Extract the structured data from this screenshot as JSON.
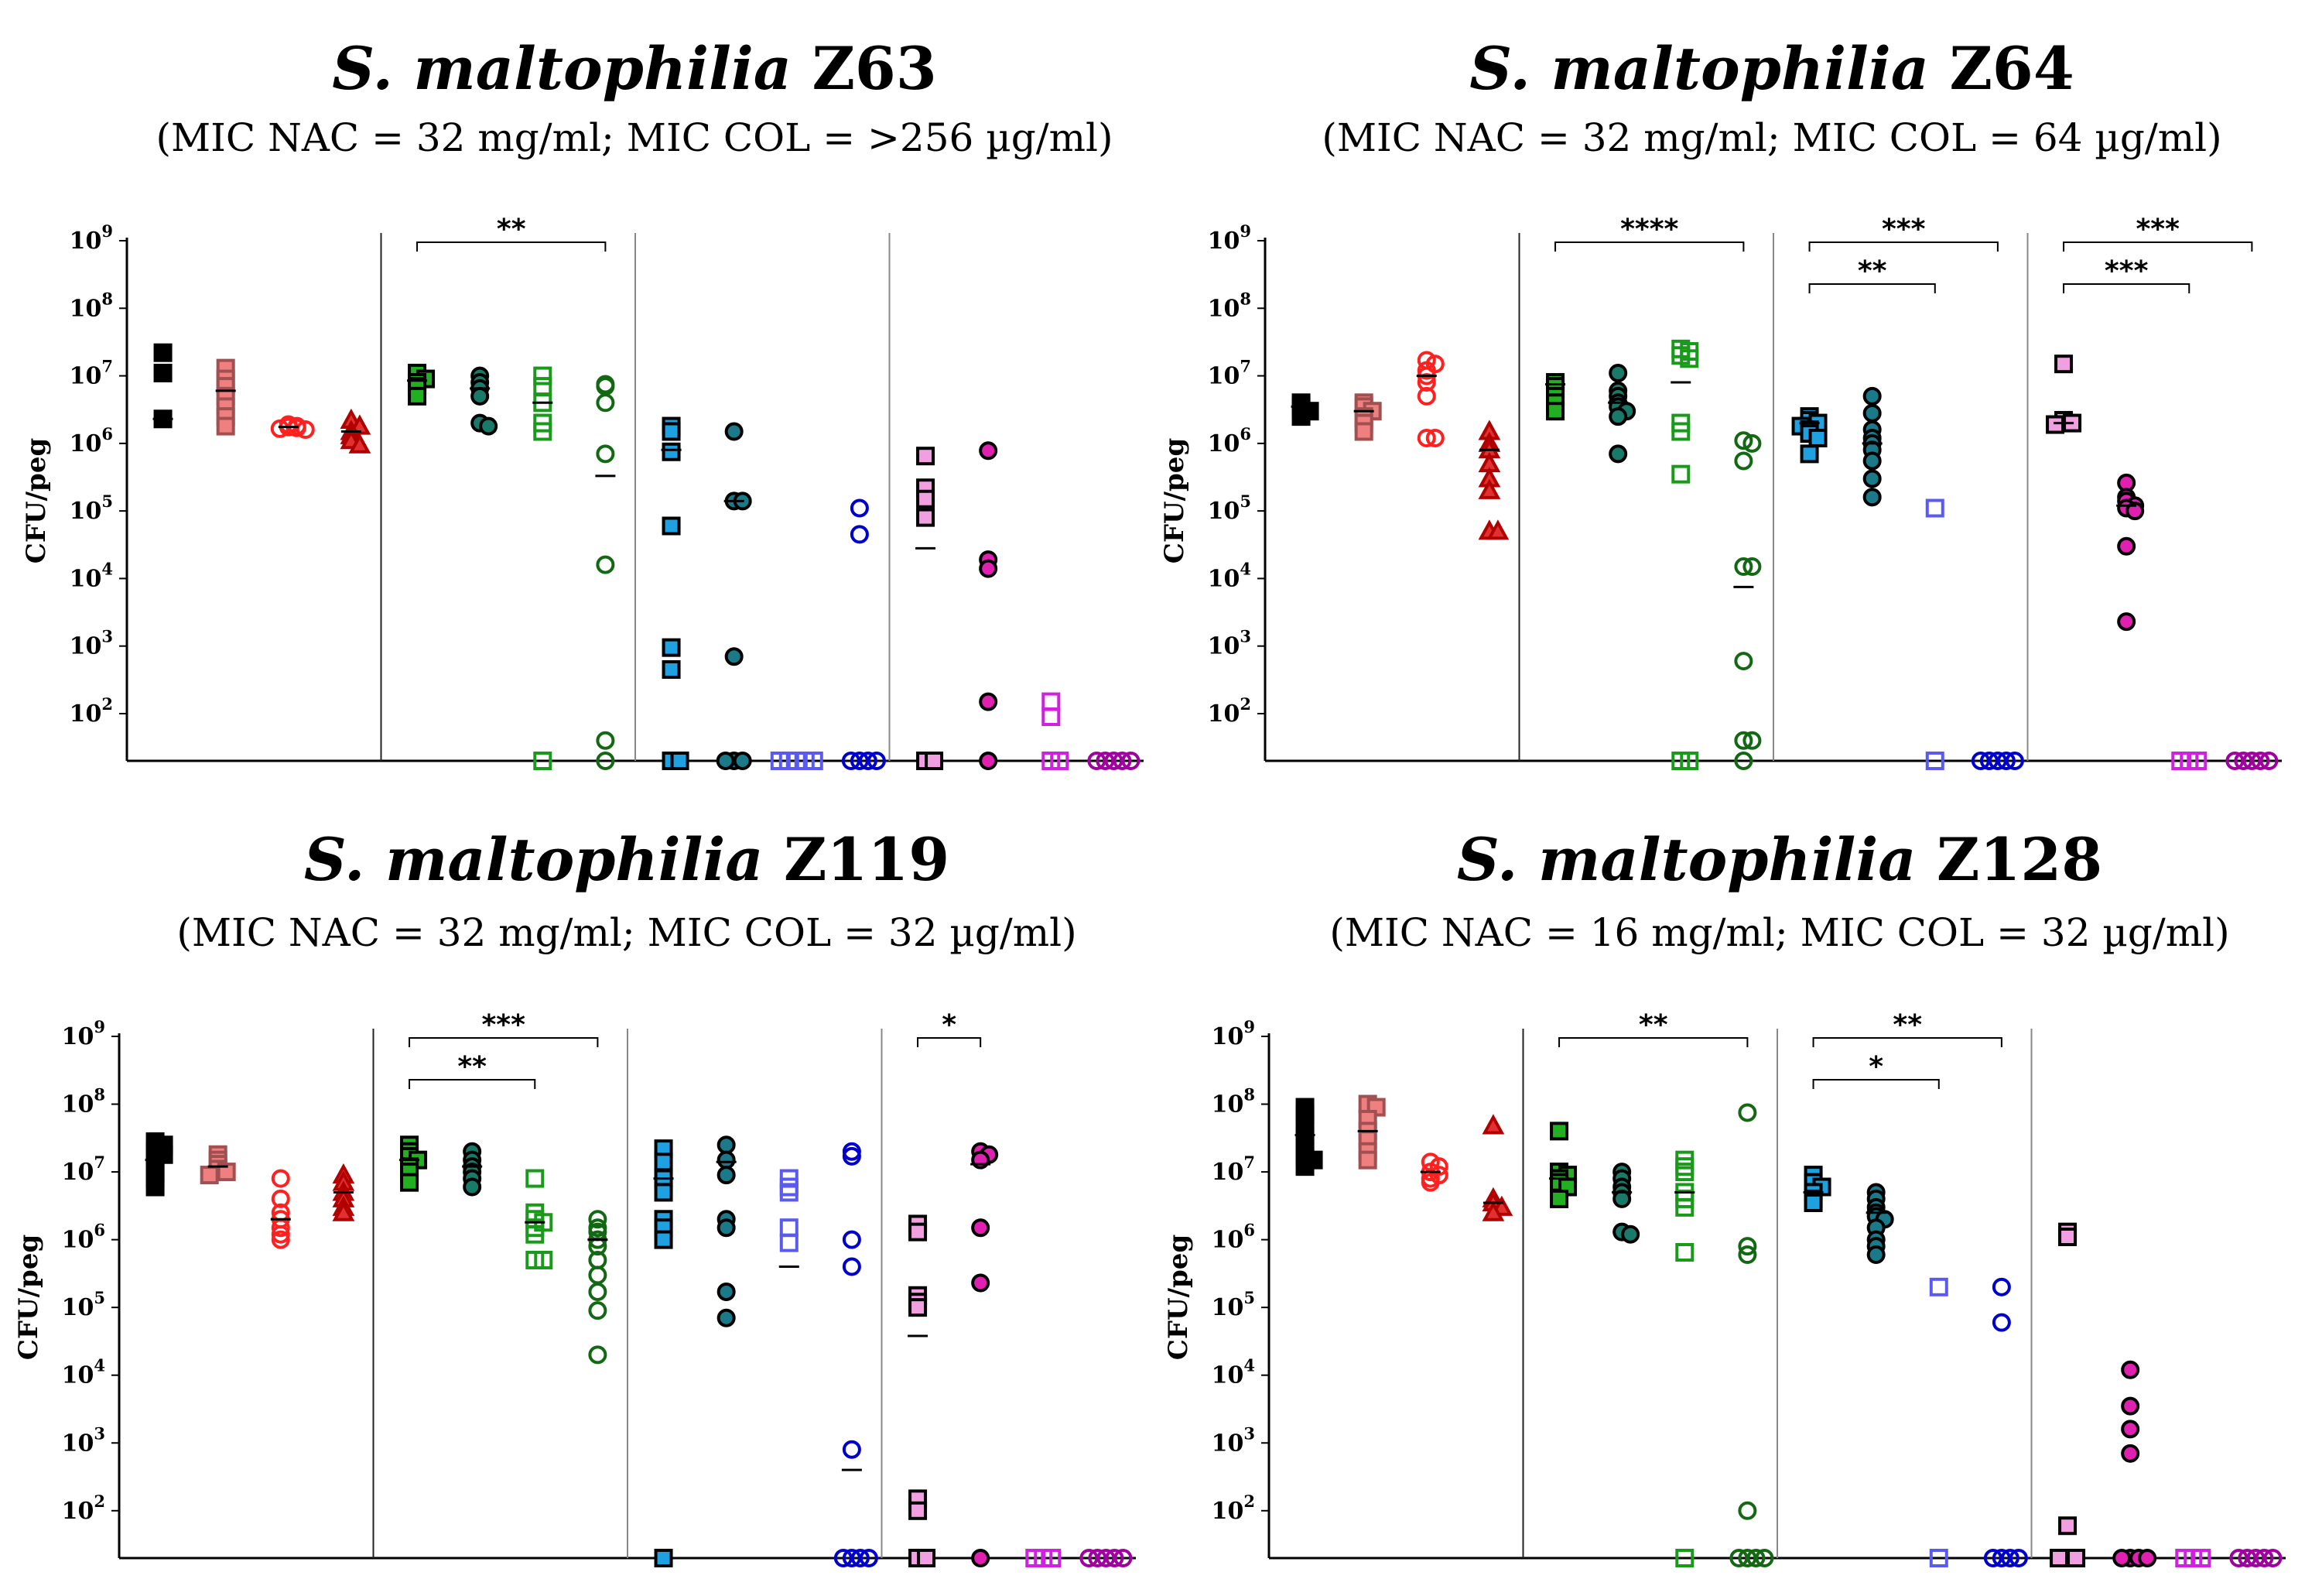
{
  "y_axis_label": "CFU/peg",
  "y_ticks": [
    {
      "base": "10",
      "exp": "2",
      "value": 100
    },
    {
      "base": "10",
      "exp": "3",
      "value": 1000
    },
    {
      "base": "10",
      "exp": "4",
      "value": 10000
    },
    {
      "base": "10",
      "exp": "5",
      "value": 100000
    },
    {
      "base": "10",
      "exp": "6",
      "value": 1000000
    },
    {
      "base": "10",
      "exp": "7",
      "value": 10000000
    },
    {
      "base": "10",
      "exp": "8",
      "value": 100000000
    },
    {
      "base": "10",
      "exp": "9",
      "value": 1000000000
    }
  ],
  "group_styles": [
    {
      "shape": "square",
      "fill": "#000000",
      "stroke": "#000000"
    },
    {
      "shape": "square",
      "fill": "#f08080",
      "stroke": "#a05050"
    },
    {
      "shape": "circle",
      "fill": "none",
      "stroke": "#ff2020"
    },
    {
      "shape": "triangle",
      "fill": "#e03030",
      "stroke": "#b00000"
    },
    {
      "shape": "square",
      "fill": "#22b022",
      "stroke": "#000000"
    },
    {
      "shape": "circle",
      "fill": "#1a7a6a",
      "stroke": "#000000"
    },
    {
      "shape": "square",
      "fill": "none",
      "stroke": "#1a9a1a"
    },
    {
      "shape": "circle",
      "fill": "none",
      "stroke": "#136813"
    },
    {
      "shape": "square",
      "fill": "#1fa0e0",
      "stroke": "#000000"
    },
    {
      "shape": "circle",
      "fill": "#1a7a8a",
      "stroke": "#000000"
    },
    {
      "shape": "square",
      "fill": "none",
      "stroke": "#5a5af0"
    },
    {
      "shape": "circle",
      "fill": "none",
      "stroke": "#0000cc"
    },
    {
      "shape": "square",
      "fill": "#f0a0e0",
      "stroke": "#000000"
    },
    {
      "shape": "circle",
      "fill": "#e020b0",
      "stroke": "#000000"
    },
    {
      "shape": "square",
      "fill": "none",
      "stroke": "#d020e0"
    },
    {
      "shape": "circle",
      "fill": "none",
      "stroke": "#a000a0"
    }
  ],
  "chart_data": [
    {
      "type": "scatter",
      "title_italic": "S. maltophilia",
      "title_strain": "Z63",
      "subtitle": "(MIC NAC = 32 mg/ml; MIC COL = >256 µg/ml)",
      "ylabel": "CFU/peg",
      "yscale": "log",
      "ylim": [
        20,
        1000000000
      ],
      "groups": [
        {
          "values": [
            22000000,
            11000000,
            2300000
          ],
          "median": 2300000
        },
        {
          "values": [
            13000000,
            9000000,
            7000000,
            5000000,
            3500000,
            2500000,
            1800000
          ],
          "median": 6000000
        },
        {
          "values": [
            1900000,
            1800000,
            1750000,
            1700000,
            1650000,
            1600000
          ],
          "median": 1750000
        },
        {
          "values": [
            2200000,
            1800000,
            1500000,
            1300000,
            1100000,
            950000
          ],
          "median": 1500000
        },
        {
          "values": [
            11000000,
            9000000,
            8000000,
            7000000,
            5000000
          ],
          "median": 8500000
        },
        {
          "values": [
            10000000,
            8000000,
            6500000,
            5000000,
            2000000,
            1800000
          ],
          "median": 6500000
        },
        {
          "values": [
            10000000,
            7000000,
            4000000,
            2000000,
            1500000,
            20
          ],
          "median": 4000000
        },
        {
          "values": [
            7500000,
            7000000,
            4000000,
            700000,
            16000,
            40,
            20
          ],
          "median": 330000
        },
        {
          "values": [
            1800000,
            1500000,
            750000,
            60000,
            950,
            450,
            20,
            20
          ],
          "median": 800000
        },
        {
          "values": [
            1500000,
            140000,
            140000,
            700,
            20,
            20,
            20
          ],
          "median": 140000
        },
        {
          "values": [
            20,
            20,
            20,
            20,
            20
          ],
          "median": null
        },
        {
          "values": [
            110000,
            45000,
            20,
            20,
            20,
            20
          ],
          "median": null
        },
        {
          "values": [
            650000,
            220000,
            150000,
            80000,
            20,
            20
          ],
          "median": 28000
        },
        {
          "values": [
            780000,
            19000,
            14000,
            150,
            20
          ],
          "median": null
        },
        {
          "values": [
            150,
            90,
            20,
            20
          ],
          "median": null
        },
        {
          "values": [
            20,
            20,
            20,
            20,
            20
          ],
          "median": null
        }
      ],
      "significance": [
        {
          "label": "**",
          "from_group": 4,
          "to_group": 7
        }
      ]
    },
    {
      "type": "scatter",
      "title_italic": "S. maltophilia",
      "title_strain": "Z64",
      "subtitle": "(MIC NAC = 32 mg/ml; MIC COL = 64 µg/ml)",
      "ylabel": "CFU/peg",
      "yscale": "log",
      "ylim": [
        20,
        1000000000
      ],
      "groups": [
        {
          "values": [
            4000000,
            3500000,
            3000000,
            2500000
          ],
          "median": 3500000
        },
        {
          "values": [
            4000000,
            3500000,
            3000000,
            2500000,
            2000000,
            1500000
          ],
          "median": 3000000
        },
        {
          "values": [
            17000000,
            15000000,
            12000000,
            10000000,
            8000000,
            5000000,
            1200000,
            1200000
          ],
          "median": 10000000
        },
        {
          "values": [
            1500000,
            1000000,
            800000,
            500000,
            300000,
            200000,
            50000,
            50000
          ],
          "median": 800000
        },
        {
          "values": [
            8000000,
            7000000,
            5000000,
            4000000,
            3000000
          ],
          "median": 7500000
        },
        {
          "values": [
            11000000,
            6000000,
            5000000,
            4000000,
            3500000,
            3000000,
            2500000,
            700000
          ],
          "median": 4000000
        },
        {
          "values": [
            25000000,
            23000000,
            20000000,
            18000000,
            2000000,
            1500000,
            350000,
            20,
            20
          ],
          "median": 8000000
        },
        {
          "values": [
            1100000,
            1000000,
            550000,
            15000,
            15000,
            600,
            40,
            40,
            20
          ],
          "median": 7500
        },
        {
          "values": [
            2500000,
            2200000,
            2000000,
            1800000,
            1600000,
            1400000,
            1200000,
            700000
          ],
          "median": 2000000
        },
        {
          "values": [
            5000000,
            2800000,
            1600000,
            1200000,
            1000000,
            800000,
            550000,
            300000,
            160000
          ],
          "median": 1000000
        },
        {
          "values": [
            110000,
            20
          ],
          "median": null
        },
        {
          "values": [
            20,
            20,
            20,
            20,
            20
          ],
          "median": null
        },
        {
          "values": [
            15000000,
            2200000,
            2000000,
            1900000
          ],
          "median": 2000000
        },
        {
          "values": [
            260000,
            160000,
            140000,
            120000,
            110000,
            100000,
            30000,
            2300
          ],
          "median": 120000
        },
        {
          "values": [
            20,
            20,
            20
          ],
          "median": null
        },
        {
          "values": [
            20,
            20,
            20,
            20,
            20
          ],
          "median": null
        }
      ],
      "significance": [
        {
          "label": "****",
          "from_group": 4,
          "to_group": 7
        },
        {
          "label": "***",
          "from_group": 8,
          "to_group": 11
        },
        {
          "label": "**",
          "from_group": 8,
          "to_group": 10
        },
        {
          "label": "***",
          "from_group": 12,
          "to_group": 15
        },
        {
          "label": "***",
          "from_group": 12,
          "to_group": 14
        }
      ]
    },
    {
      "type": "scatter",
      "title_italic": "S. maltophilia",
      "title_strain": "Z119",
      "subtitle": "(MIC NAC = 32 mg/ml; MIC COL = 32 µg/ml)",
      "ylabel": "CFU/peg",
      "yscale": "log",
      "ylim": [
        20,
        1000000000
      ],
      "groups": [
        {
          "values": [
            28000000,
            25000000,
            20000000,
            18000000,
            15000000,
            12000000,
            10000000,
            8000000,
            6000000
          ],
          "median": 15000000
        },
        {
          "values": [
            18000000,
            15000000,
            13000000,
            11000000,
            10000000,
            9000000
          ],
          "median": 12000000
        },
        {
          "values": [
            8000000,
            4000000,
            2500000,
            2000000,
            1500000,
            1200000,
            1000000
          ],
          "median": 2000000
        },
        {
          "values": [
            9000000,
            7000000,
            5000000,
            4000000,
            3000000,
            2500000
          ],
          "median": 5000000
        },
        {
          "values": [
            25000000,
            20000000,
            17000000,
            15000000,
            12000000,
            10000000,
            7000000
          ],
          "median": 15000000
        },
        {
          "values": [
            20000000,
            15000000,
            12000000,
            10000000,
            8000000,
            6000000
          ],
          "median": 12000000
        },
        {
          "values": [
            8000000,
            2500000,
            2000000,
            1800000,
            1500000,
            1200000,
            500000,
            500000
          ],
          "median": 1800000
        },
        {
          "values": [
            2000000,
            1500000,
            1300000,
            1000000,
            800000,
            500000,
            300000,
            170000,
            90000,
            20000
          ],
          "median": 1000000
        },
        {
          "values": [
            22000000,
            14000000,
            8000000,
            5000000,
            2000000,
            1500000,
            1000000,
            20
          ],
          "median": 8000000
        },
        {
          "values": [
            25000000,
            15000000,
            9000000,
            2000000,
            1500000,
            170000,
            70000
          ],
          "median": 14000000
        },
        {
          "values": [
            8000000,
            6000000,
            5000000,
            1500000,
            900000
          ],
          "median": 400000
        },
        {
          "values": [
            20000000,
            17000000,
            1000000,
            400000,
            800,
            20,
            20,
            20,
            20
          ],
          "median": 400
        },
        {
          "values": [
            1700000,
            1300000,
            150000,
            120000,
            100000,
            150,
            100,
            20,
            20
          ],
          "median": 38000
        },
        {
          "values": [
            20000000,
            18000000,
            15000000,
            1500000,
            230000,
            20
          ],
          "median": 13000000
        },
        {
          "values": [
            20,
            20,
            20
          ],
          "median": null
        },
        {
          "values": [
            20,
            20,
            20,
            20,
            20
          ],
          "median": null
        }
      ],
      "significance": [
        {
          "label": "***",
          "from_group": 4,
          "to_group": 7
        },
        {
          "label": "**",
          "from_group": 4,
          "to_group": 6
        },
        {
          "label": "*",
          "from_group": 12,
          "to_group": 13
        }
      ]
    },
    {
      "type": "scatter",
      "title_italic": "S. maltophilia",
      "title_strain": "Z128",
      "subtitle": "(MIC NAC = 16 mg/ml; MIC COL = 32 µg/ml)",
      "ylabel": "CFU/peg",
      "yscale": "log",
      "ylim": [
        20,
        1000000000
      ],
      "groups": [
        {
          "values": [
            90000000,
            70000000,
            50000000,
            35000000,
            25000000,
            20000000,
            17000000,
            15000000,
            12000000
          ],
          "median": 35000000
        },
        {
          "values": [
            100000000,
            90000000,
            60000000,
            40000000,
            30000000,
            20000000,
            15000000
          ],
          "median": 40000000
        },
        {
          "values": [
            14000000,
            12000000,
            10000000,
            9000000,
            8000000,
            7000000
          ],
          "median": 10000000
        },
        {
          "values": [
            48000000,
            4000000,
            3500000,
            3000000,
            2500000
          ],
          "median": 3500000
        },
        {
          "values": [
            40000000,
            10000000,
            9000000,
            8000000,
            7000000,
            6000000,
            4000000
          ],
          "median": 8000000
        },
        {
          "values": [
            10000000,
            8000000,
            6000000,
            5000000,
            4000000,
            1300000,
            1200000
          ],
          "median": 5000000
        },
        {
          "values": [
            15000000,
            12000000,
            10000000,
            5000000,
            4000000,
            3000000,
            650000,
            20
          ],
          "median": 5000000
        },
        {
          "values": [
            75000000,
            800000,
            600000,
            100,
            20,
            20,
            20,
            20
          ],
          "median": null
        },
        {
          "values": [
            9000000,
            7000000,
            6000000,
            5000000,
            4000000,
            3500000
          ],
          "median": 5000000
        },
        {
          "values": [
            5000000,
            4000000,
            3000000,
            2500000,
            2200000,
            2000000,
            1500000,
            1000000,
            800000,
            600000
          ],
          "median": 2500000
        },
        {
          "values": [
            200000,
            20
          ],
          "median": null
        },
        {
          "values": [
            200000,
            60000,
            20,
            20,
            20,
            20
          ],
          "median": null
        },
        {
          "values": [
            1300000,
            1100000,
            60,
            20,
            20,
            20
          ],
          "median": null
        },
        {
          "values": [
            12000,
            3500,
            1600,
            700,
            20,
            20,
            20,
            20
          ],
          "median": null
        },
        {
          "values": [
            20,
            20,
            20
          ],
          "median": null
        },
        {
          "values": [
            20,
            20,
            20,
            20,
            20
          ],
          "median": null
        }
      ],
      "significance": [
        {
          "label": "**",
          "from_group": 4,
          "to_group": 7
        },
        {
          "label": "**",
          "from_group": 8,
          "to_group": 11
        },
        {
          "label": "*",
          "from_group": 8,
          "to_group": 10
        }
      ]
    }
  ]
}
